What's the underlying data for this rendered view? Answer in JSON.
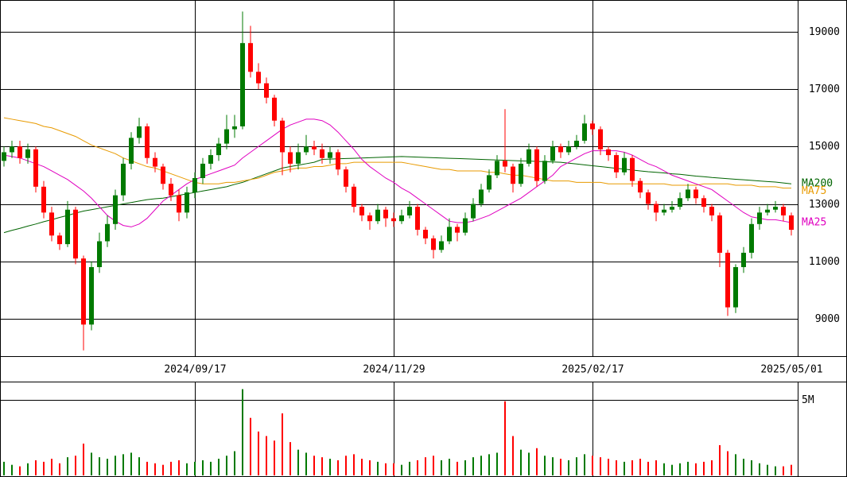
{
  "chart_data": {
    "type": "candlestick",
    "categories": [
      null,
      null,
      null,
      null,
      null,
      null,
      null,
      null,
      null,
      null,
      null,
      null,
      null,
      null,
      null,
      null,
      null,
      null,
      null,
      null,
      null,
      null,
      null,
      null,
      "2024/09/17",
      null,
      null,
      null,
      null,
      null,
      null,
      null,
      null,
      null,
      null,
      null,
      null,
      null,
      null,
      null,
      null,
      null,
      null,
      null,
      null,
      null,
      null,
      null,
      null,
      "2024/11/29",
      null,
      null,
      null,
      null,
      null,
      null,
      null,
      null,
      null,
      null,
      null,
      null,
      null,
      null,
      null,
      null,
      null,
      null,
      null,
      null,
      null,
      null,
      null,
      null,
      "2025/02/17",
      null,
      null,
      null,
      null,
      null,
      null,
      null,
      null,
      null,
      null,
      null,
      null,
      null,
      null,
      null,
      null,
      null,
      null,
      null,
      null,
      null,
      null,
      null,
      null,
      "2025/05/01"
    ],
    "up_color": "#007a00",
    "down_color": "#ff0000",
    "ylim": [
      7700,
      20100
    ],
    "yticks": [
      9000,
      11000,
      13000,
      15000,
      17000,
      19000
    ],
    "grid": true,
    "open": [
      14500,
      14800,
      15000,
      14600,
      14900,
      13600,
      12700,
      11900,
      11600,
      12800,
      11100,
      8800,
      10800,
      11700,
      12300,
      13300,
      14400,
      15300,
      15700,
      14600,
      14300,
      13700,
      13300,
      12700,
      13400,
      13900,
      14400,
      14700,
      15100,
      15600,
      15700,
      18600,
      17600,
      17200,
      16700,
      15900,
      14800,
      14400,
      14800,
      15000,
      14900,
      14600,
      14800,
      14200,
      13600,
      12900,
      12600,
      12400,
      12800,
      12500,
      12400,
      12600,
      12900,
      12100,
      11800,
      11400,
      11700,
      12200,
      12000,
      12500,
      13000,
      13500,
      14000,
      14500,
      14300,
      13700,
      14400,
      14900,
      13800,
      14500,
      15000,
      14800,
      15000,
      15200,
      15800,
      15600,
      14900,
      14700,
      14100,
      14600,
      13800,
      13400,
      13000,
      12700,
      12800,
      12900,
      13200,
      13500,
      13200,
      12900,
      12600,
      11300,
      9400,
      10800,
      11300,
      12300,
      12700,
      12800,
      12900,
      12600
    ],
    "high": [
      15000,
      15200,
      15200,
      15100,
      15000,
      13800,
      12900,
      12000,
      13100,
      12900,
      11200,
      11000,
      12000,
      12600,
      13500,
      14600,
      15500,
      16000,
      15800,
      14800,
      14400,
      13900,
      13500,
      13600,
      14100,
      14600,
      14900,
      15300,
      16100,
      16100,
      19700,
      19200,
      17900,
      17400,
      16800,
      16000,
      15000,
      15100,
      15400,
      15200,
      15100,
      15000,
      14900,
      14300,
      13700,
      13000,
      12700,
      13000,
      12900,
      12700,
      12800,
      13100,
      13000,
      12200,
      11900,
      11900,
      12500,
      12300,
      12700,
      13200,
      13700,
      14200,
      14700,
      16300,
      14400,
      14600,
      15100,
      15000,
      14700,
      15200,
      15100,
      15200,
      15400,
      16100,
      15900,
      15700,
      15000,
      14800,
      14800,
      14700,
      13900,
      13500,
      13100,
      13000,
      13100,
      13400,
      13700,
      13600,
      13300,
      13000,
      12700,
      11400,
      10900,
      11500,
      12500,
      12900,
      13000,
      13100,
      13000,
      12700
    ],
    "low": [
      14300,
      14600,
      14400,
      14400,
      13400,
      12500,
      11700,
      11400,
      11500,
      10900,
      7900,
      8600,
      10600,
      11500,
      12100,
      13100,
      14200,
      15100,
      14400,
      14100,
      13500,
      13100,
      12400,
      12500,
      13200,
      13700,
      14200,
      14500,
      14900,
      15300,
      15600,
      17400,
      17000,
      16500,
      15700,
      14000,
      14100,
      14200,
      14700,
      14700,
      14400,
      14400,
      14000,
      13400,
      12700,
      12400,
      12100,
      12300,
      12200,
      12200,
      12300,
      12500,
      11900,
      11600,
      11100,
      11300,
      11600,
      11700,
      11900,
      12400,
      12900,
      13400,
      13900,
      14100,
      13400,
      13600,
      14300,
      13600,
      13700,
      14400,
      14600,
      14700,
      14900,
      15100,
      15400,
      14700,
      14500,
      13900,
      14000,
      13600,
      13200,
      12800,
      12400,
      12600,
      12700,
      12800,
      13100,
      13000,
      12700,
      12400,
      10800,
      9100,
      9200,
      10600,
      11100,
      12100,
      12600,
      12700,
      12400,
      11900
    ],
    "close": [
      14800,
      15000,
      14600,
      14900,
      13600,
      12700,
      11900,
      11600,
      12800,
      11100,
      8800,
      10800,
      11700,
      12300,
      13300,
      14400,
      15300,
      15700,
      14600,
      14300,
      13700,
      13300,
      12700,
      13400,
      13900,
      14400,
      14700,
      15100,
      15600,
      15700,
      18600,
      17600,
      17200,
      16700,
      15900,
      14800,
      14400,
      14800,
      15000,
      14900,
      14600,
      14800,
      14200,
      13600,
      12900,
      12600,
      12400,
      12800,
      12500,
      12400,
      12600,
      12900,
      12100,
      11800,
      11400,
      11700,
      12200,
      12000,
      12500,
      13000,
      13500,
      14000,
      14500,
      14300,
      13700,
      14400,
      14900,
      13800,
      14500,
      15000,
      14800,
      15000,
      15200,
      15800,
      15600,
      14900,
      14700,
      14100,
      14600,
      13800,
      13400,
      13000,
      12700,
      12800,
      12900,
      13200,
      13500,
      13200,
      12900,
      12600,
      11300,
      9400,
      10800,
      11300,
      12300,
      12700,
      12800,
      12900,
      12600,
      12100
    ],
    "ma": [
      {
        "name": "MA200",
        "color": "#006400",
        "values": [
          12000,
          12080,
          12150,
          12230,
          12300,
          12380,
          12450,
          12530,
          12600,
          12680,
          12750,
          12800,
          12850,
          12900,
          12950,
          13000,
          13050,
          13100,
          13150,
          13180,
          13200,
          13250,
          13300,
          13350,
          13400,
          13450,
          13500,
          13550,
          13600,
          13680,
          13750,
          13850,
          13950,
          14050,
          14150,
          14250,
          14300,
          14350,
          14400,
          14450,
          14550,
          14560,
          14570,
          14580,
          14590,
          14600,
          14610,
          14620,
          14630,
          14640,
          14650,
          14640,
          14630,
          14620,
          14610,
          14600,
          14590,
          14580,
          14570,
          14560,
          14550,
          14540,
          14530,
          14520,
          14510,
          14500,
          14490,
          14480,
          14470,
          14460,
          14450,
          14420,
          14390,
          14360,
          14330,
          14300,
          14270,
          14240,
          14210,
          14180,
          14150,
          14120,
          14100,
          14080,
          14050,
          14030,
          14000,
          13970,
          13950,
          13920,
          13900,
          13880,
          13860,
          13840,
          13820,
          13800,
          13780,
          13760,
          13730,
          13700
        ]
      },
      {
        "name": "MA75",
        "color": "#e89a00",
        "values": [
          16000,
          15950,
          15900,
          15850,
          15800,
          15700,
          15650,
          15550,
          15450,
          15350,
          15200,
          15050,
          14950,
          14850,
          14750,
          14600,
          14500,
          14400,
          14300,
          14250,
          14150,
          14050,
          13950,
          13850,
          13750,
          13700,
          13700,
          13700,
          13750,
          13750,
          13800,
          13850,
          13900,
          14000,
          14100,
          14150,
          14200,
          14250,
          14250,
          14300,
          14300,
          14350,
          14400,
          14400,
          14450,
          14450,
          14450,
          14450,
          14450,
          14450,
          14450,
          14400,
          14350,
          14300,
          14250,
          14200,
          14200,
          14150,
          14150,
          14150,
          14150,
          14100,
          14100,
          14050,
          14000,
          14000,
          13950,
          13900,
          13850,
          13800,
          13800,
          13800,
          13750,
          13750,
          13750,
          13750,
          13700,
          13700,
          13700,
          13700,
          13700,
          13700,
          13700,
          13700,
          13650,
          13650,
          13650,
          13650,
          13700,
          13700,
          13700,
          13700,
          13650,
          13650,
          13650,
          13600,
          13600,
          13600,
          13550,
          13550
        ]
      },
      {
        "name": "MA25",
        "color": "#e000c0",
        "values": [
          14700,
          14650,
          14600,
          14500,
          14400,
          14300,
          14150,
          14000,
          13850,
          13650,
          13450,
          13200,
          12900,
          12600,
          12400,
          12250,
          12200,
          12300,
          12500,
          12800,
          13100,
          13300,
          13500,
          13700,
          13850,
          13950,
          14050,
          14150,
          14250,
          14350,
          14600,
          14800,
          15000,
          15200,
          15400,
          15600,
          15750,
          15850,
          15950,
          15950,
          15900,
          15750,
          15500,
          15200,
          14900,
          14550,
          14300,
          14100,
          13900,
          13750,
          13550,
          13400,
          13200,
          13000,
          12800,
          12600,
          12400,
          12350,
          12350,
          12400,
          12500,
          12600,
          12750,
          12900,
          13050,
          13200,
          13400,
          13600,
          13800,
          14000,
          14300,
          14450,
          14600,
          14750,
          14850,
          14850,
          14850,
          14850,
          14800,
          14700,
          14550,
          14400,
          14300,
          14150,
          14000,
          13900,
          13800,
          13700,
          13600,
          13500,
          13300,
          13100,
          12900,
          12700,
          12550,
          12500,
          12450,
          12450,
          12400,
          12350
        ]
      }
    ],
    "volume": {
      "ylim": [
        0,
        6200000
      ],
      "yticks": [
        {
          "value": 5000000,
          "label": "5M"
        }
      ],
      "values": [
        900000,
        700000,
        600000,
        800000,
        1000000,
        900000,
        1100000,
        800000,
        1200000,
        1300000,
        2100000,
        1500000,
        1200000,
        1100000,
        1300000,
        1400000,
        1500000,
        1200000,
        900000,
        800000,
        700000,
        900000,
        1000000,
        800000,
        900000,
        1000000,
        900000,
        1100000,
        1300000,
        1600000,
        5700000,
        3800000,
        2900000,
        2600000,
        2300000,
        4100000,
        2200000,
        1700000,
        1500000,
        1300000,
        1200000,
        1100000,
        1000000,
        1300000,
        1400000,
        1100000,
        1000000,
        900000,
        800000,
        800000,
        700000,
        900000,
        1000000,
        1200000,
        1300000,
        1000000,
        1100000,
        900000,
        1000000,
        1200000,
        1300000,
        1400000,
        1500000,
        4900000,
        2600000,
        1700000,
        1500000,
        1800000,
        1300000,
        1200000,
        1100000,
        1000000,
        1200000,
        1400000,
        1300000,
        1200000,
        1100000,
        1000000,
        900000,
        1000000,
        1100000,
        900000,
        1000000,
        800000,
        700000,
        800000,
        900000,
        800000,
        900000,
        1000000,
        2000000,
        1600000,
        1400000,
        1100000,
        1000000,
        800000,
        700000,
        600000,
        600000,
        700000
      ]
    }
  }
}
